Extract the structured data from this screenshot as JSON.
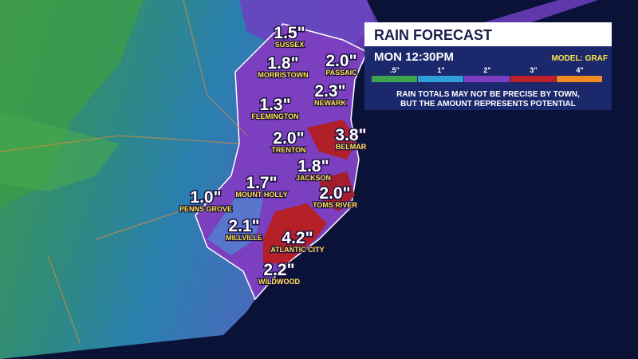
{
  "panel": {
    "title": "RAIN FORECAST",
    "time": "MON 12:30PM",
    "model": "MODEL: GRAF",
    "legend": [
      ".5\"",
      "1\"",
      "2\"",
      "3\"",
      "4\""
    ],
    "disclaimer": [
      "RAIN TOTALS MAY NOT BE PRECISE BY TOWN,",
      "BUT THE AMOUNT REPRESENTS POTENTIAL"
    ]
  },
  "towns": [
    {
      "amount": "1.5\"",
      "name": "SUSSEX"
    },
    {
      "amount": "1.8\"",
      "name": "MORRISTOWN"
    },
    {
      "amount": "2.0\"",
      "name": "PASSAIC"
    },
    {
      "amount": "2.3\"",
      "name": "NEWARK"
    },
    {
      "amount": "1.3\"",
      "name": "FLEMINGTON"
    },
    {
      "amount": "2.0\"",
      "name": "TRENTON"
    },
    {
      "amount": "3.8\"",
      "name": "BELMAR"
    },
    {
      "amount": "1.8\"",
      "name": "JACKSON"
    },
    {
      "amount": "1.7\"",
      "name": "MOUNT HOLLY"
    },
    {
      "amount": "2.0\"",
      "name": "TOMS RIVER"
    },
    {
      "amount": "1.0\"",
      "name": "PENNS GROVE"
    },
    {
      "amount": "2.1\"",
      "name": "MILLVILLE"
    },
    {
      "amount": "4.2\"",
      "name": "ATLANTIC CITY"
    },
    {
      "amount": "2.2\"",
      "name": "WILDWOOD"
    }
  ]
}
